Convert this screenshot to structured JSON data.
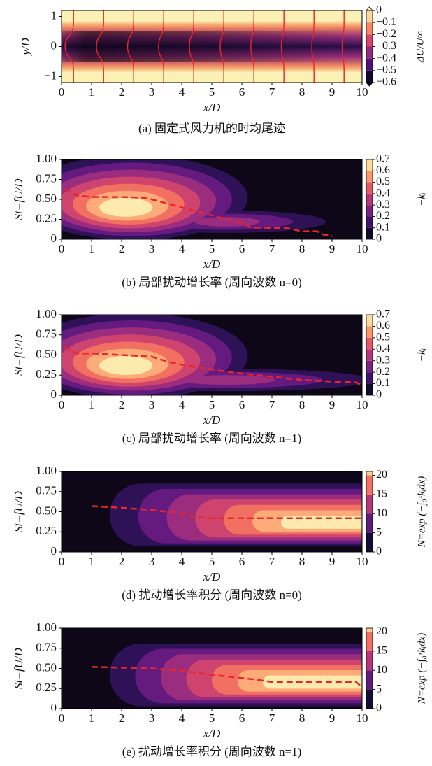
{
  "chart_data": [
    {
      "type": "wake",
      "caption": "(a) 固定式风力机的时均尾迹",
      "xlabel": "x/D",
      "ylabel": "y/D",
      "xlim": [
        0,
        10
      ],
      "xticks": [
        0,
        1,
        2,
        3,
        4,
        5,
        6,
        7,
        8,
        9,
        10
      ],
      "ylim": [
        -1.2,
        1.2
      ],
      "yticks": [
        1,
        0,
        {
          "value": -1,
          "label": "−1"
        }
      ],
      "colorbar": {
        "label": "ΔU/U∞",
        "lim": [
          -0.6,
          0
        ],
        "ticks": [
          0,
          {
            "value": -0.1,
            "label": "−0.1"
          },
          {
            "value": -0.2,
            "label": "−0.2"
          },
          {
            "value": -0.3,
            "label": "−0.3"
          },
          {
            "value": -0.4,
            "label": "−0.4"
          },
          {
            "value": -0.5,
            "label": "−0.5"
          },
          {
            "value": -0.6,
            "label": "−0.6"
          }
        ]
      }
    },
    {
      "type": "growth",
      "caption": "(b) 局部扰动增长率 (周向波数 n=0)",
      "xlabel": "x/D",
      "ylabel": "St=fU/D",
      "xlim": [
        0,
        10
      ],
      "xticks": [
        0,
        1,
        2,
        3,
        4,
        5,
        6,
        7,
        8,
        9,
        10
      ],
      "ylim": [
        0,
        1
      ],
      "yticks": [
        0,
        {
          "value": 0.25,
          "label": "0.25"
        },
        {
          "value": 0.5,
          "label": "0.50"
        },
        {
          "value": 0.75,
          "label": "0.75"
        },
        {
          "value": 1,
          "label": "1.00"
        }
      ],
      "colorbar": {
        "label": "−kᵢ",
        "lim": [
          0,
          0.7
        ],
        "ticks": [
          0,
          0.1,
          0.2,
          0.3,
          0.4,
          0.5,
          0.6,
          0.7
        ]
      },
      "series": [
        {
          "color": "#e8262b",
          "x": [
            0.1,
            0.5,
            1,
            2,
            2.8,
            3.5,
            4,
            5,
            5.5,
            6,
            6.3,
            7,
            7.5,
            8,
            8.5,
            8.7,
            9
          ],
          "values": [
            0.63,
            0.55,
            0.53,
            0.53,
            0.52,
            0.45,
            0.4,
            0.3,
            0.25,
            0.2,
            0.15,
            0.14,
            0.14,
            0.1,
            0.1,
            0.06,
            0.04
          ]
        }
      ]
    },
    {
      "type": "growth",
      "caption": "(c) 局部扰动增长率 (周向波数 n=1)",
      "xlabel": "x/D",
      "ylabel": "St=fU/D",
      "xlim": [
        0,
        10
      ],
      "xticks": [
        0,
        1,
        2,
        3,
        4,
        5,
        6,
        7,
        8,
        9,
        10
      ],
      "ylim": [
        0,
        1
      ],
      "yticks": [
        0,
        {
          "value": 0.25,
          "label": "0.25"
        },
        {
          "value": 0.5,
          "label": "0.50"
        },
        {
          "value": 0.75,
          "label": "0.75"
        },
        {
          "value": 1,
          "label": "1.00"
        }
      ],
      "colorbar": {
        "label": "−kᵢ",
        "lim": [
          0,
          0.7
        ],
        "ticks": [
          0,
          0.1,
          0.2,
          0.3,
          0.4,
          0.5,
          0.6,
          0.7
        ]
      },
      "series": [
        {
          "color": "#e8262b",
          "x": [
            0.1,
            0.5,
            1,
            2,
            3,
            3.5,
            4,
            5,
            6,
            7,
            8,
            9,
            9.8,
            10
          ],
          "values": [
            0.6,
            0.52,
            0.52,
            0.5,
            0.48,
            0.42,
            0.38,
            0.32,
            0.27,
            0.23,
            0.19,
            0.17,
            0.16,
            0.12
          ]
        }
      ]
    },
    {
      "type": "integral",
      "caption": "(d) 扰动增长率积分 (周向波数 n=0)",
      "xlabel": "x/D",
      "ylabel": "St=fU/D",
      "xlim": [
        0,
        10
      ],
      "xticks": [
        0,
        1,
        2,
        3,
        4,
        5,
        6,
        7,
        8,
        9,
        10
      ],
      "ylim": [
        0,
        1
      ],
      "yticks": [
        0,
        {
          "value": 0.25,
          "label": "0.25"
        },
        {
          "value": 0.5,
          "label": "0.50"
        },
        {
          "value": 0.75,
          "label": "0.75"
        },
        {
          "value": 1,
          "label": "1.00"
        }
      ],
      "colorbar": {
        "label": "N=exp (−∫₀ˣkᵢdx)",
        "lim": [
          0,
          21
        ],
        "ticks": [
          0,
          5,
          10,
          15,
          20
        ]
      },
      "series": [
        {
          "color": "#e8262b",
          "x": [
            1,
            2,
            3,
            4,
            4.5,
            5,
            6,
            7,
            8,
            9,
            10
          ],
          "values": [
            0.57,
            0.55,
            0.52,
            0.48,
            0.43,
            0.42,
            0.42,
            0.42,
            0.42,
            0.42,
            0.42
          ]
        }
      ]
    },
    {
      "type": "integral",
      "caption": "(e) 扰动增长率积分 (周向波数 n=1)",
      "xlabel": "x/D",
      "ylabel": "St=fU/D",
      "xlim": [
        0,
        10
      ],
      "xticks": [
        0,
        1,
        2,
        3,
        4,
        5,
        6,
        7,
        8,
        9,
        10
      ],
      "ylim": [
        0,
        1
      ],
      "yticks": [
        0,
        {
          "value": 0.25,
          "label": "0.25"
        },
        {
          "value": 0.5,
          "label": "0.50"
        },
        {
          "value": 0.75,
          "label": "0.75"
        },
        {
          "value": 1,
          "label": "1.00"
        }
      ],
      "colorbar": {
        "label": "N=exp (−∫₀ˣkᵢdx)",
        "lim": [
          0,
          21
        ],
        "ticks": [
          0,
          5,
          10,
          15,
          20
        ]
      },
      "series": [
        {
          "color": "#e8262b",
          "x": [
            1,
            2,
            3,
            4,
            5,
            6,
            6.5,
            7,
            8,
            9,
            9.8,
            10
          ],
          "values": [
            0.52,
            0.51,
            0.5,
            0.47,
            0.42,
            0.38,
            0.36,
            0.33,
            0.33,
            0.33,
            0.33,
            0.27
          ]
        }
      ]
    }
  ]
}
